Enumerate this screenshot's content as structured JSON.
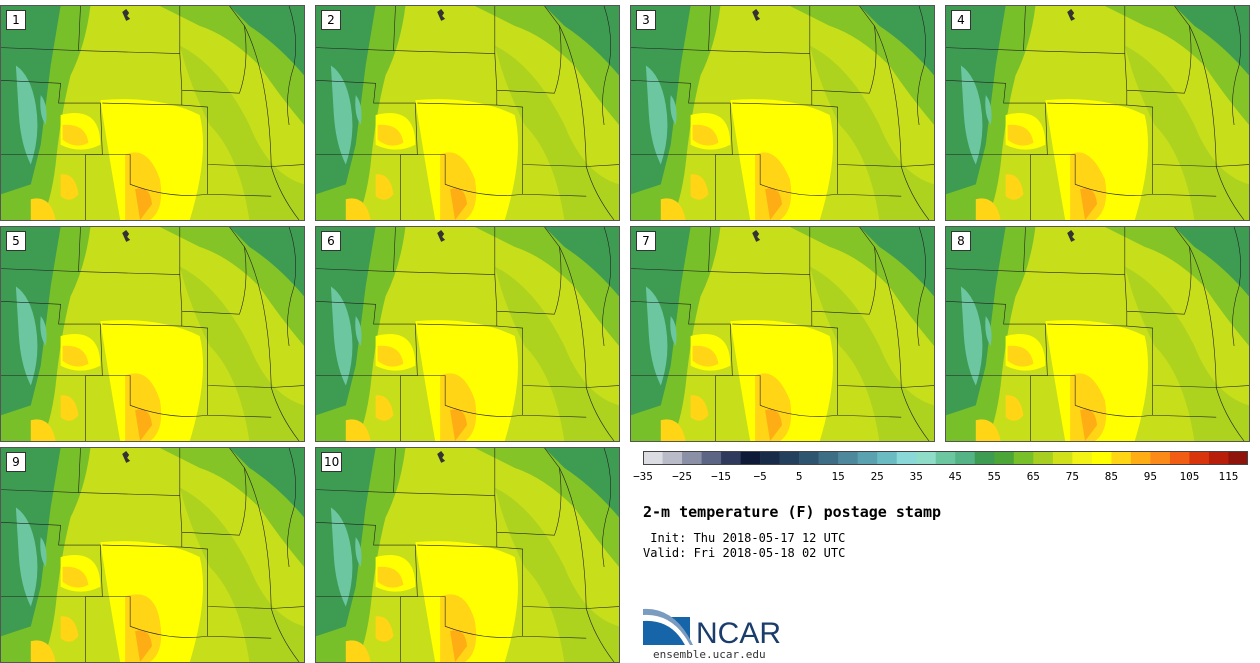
{
  "members": [
    {
      "label": "1"
    },
    {
      "label": "2"
    },
    {
      "label": "3"
    },
    {
      "label": "4"
    },
    {
      "label": "5"
    },
    {
      "label": "6"
    },
    {
      "label": "7"
    },
    {
      "label": "8"
    },
    {
      "label": "9"
    },
    {
      "label": "10"
    }
  ],
  "colorbar": {
    "levels": [
      -35,
      -30,
      -25,
      -20,
      -15,
      -10,
      -5,
      0,
      5,
      10,
      15,
      20,
      25,
      30,
      35,
      40,
      45,
      50,
      55,
      60,
      65,
      70,
      75,
      80,
      85,
      90,
      95,
      100,
      105,
      110,
      115,
      120
    ],
    "tick_labels": [
      "−35",
      "−25",
      "−15",
      "−5",
      "5",
      "15",
      "25",
      "35",
      "45",
      "55",
      "65",
      "75",
      "85",
      "95",
      "105",
      "115"
    ],
    "colors": [
      "#dcdde3",
      "#b9bcc8",
      "#8b90a6",
      "#5d6584",
      "#2f3a5c",
      "#0f1a38",
      "#182b48",
      "#24405c",
      "#2e5570",
      "#3d6e86",
      "#4d889c",
      "#5aa2b0",
      "#6abcc2",
      "#8ad8d8",
      "#8fdcc8",
      "#6cc7a1",
      "#54b486",
      "#3e9c52",
      "#4ba537",
      "#78c02a",
      "#a6cf21",
      "#d0e01a",
      "#f2f216",
      "#ffff00",
      "#ffd515",
      "#ffad14",
      "#fb8a18",
      "#f15d12",
      "#d9350c",
      "#b81f0a",
      "#8f150c"
    ]
  },
  "title": "2-m temperature (F) postage stamp",
  "init": " Init: Thu 2018-05-17 12 UTC",
  "valid": "Valid: Fri 2018-05-18 02 UTC",
  "logo_text": "NCAR",
  "url": "ensemble.ucar.edu",
  "map_palette": {
    "base": "#c7de1a",
    "north_green": "#78c02a",
    "mountain": "#3e9c52",
    "peak": "#6cc7a1",
    "warm": "#ffff00",
    "hot": "#ffd515",
    "hottest": "#ffad14",
    "lake": "#a6cf21",
    "borders": "#222222"
  }
}
